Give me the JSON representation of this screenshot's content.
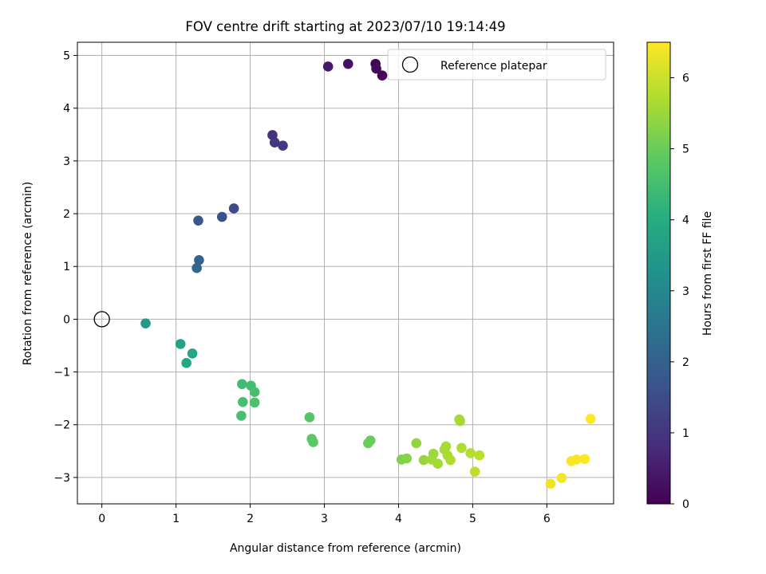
{
  "chart_data": {
    "type": "scatter",
    "title": "FOV centre drift starting at 2023/07/10 19:14:49",
    "xlabel": "Angular distance from reference (arcmin)",
    "ylabel": "Rotation from reference (arcmin)",
    "xlim": [
      -0.33,
      6.9
    ],
    "ylim": [
      -3.5,
      5.25
    ],
    "xticks": [
      0,
      1,
      2,
      3,
      4,
      5,
      6
    ],
    "yticks": [
      -3,
      -2,
      -1,
      0,
      1,
      2,
      3,
      4,
      5
    ],
    "xtick_labels": [
      "0",
      "1",
      "2",
      "3",
      "4",
      "5",
      "6"
    ],
    "ytick_labels": [
      "−3",
      "−2",
      "−1",
      "0",
      "1",
      "2",
      "3",
      "4",
      "5"
    ],
    "grid": true,
    "legend": {
      "position": "top-right",
      "entries": [
        "Reference platepar"
      ]
    },
    "reference": {
      "name": "Reference platepar",
      "x": 0,
      "y": 0,
      "marker": "open-circle"
    },
    "colorbar": {
      "label": "Hours from first FF file",
      "colormap": "viridis",
      "range": [
        0,
        6.5
      ],
      "ticks": [
        0,
        1,
        2,
        3,
        4,
        5,
        6
      ],
      "tick_labels": [
        "0",
        "1",
        "2",
        "3",
        "4",
        "5",
        "6"
      ]
    },
    "points": [
      {
        "x": 3.69,
        "y": 4.84,
        "c": 0.0
      },
      {
        "x": 3.78,
        "y": 4.62,
        "c": 0.08
      },
      {
        "x": 3.7,
        "y": 4.75,
        "c": 0.15
      },
      {
        "x": 3.32,
        "y": 4.84,
        "c": 0.3
      },
      {
        "x": 3.05,
        "y": 4.79,
        "c": 0.45
      },
      {
        "x": 2.3,
        "y": 3.49,
        "c": 0.9
      },
      {
        "x": 2.33,
        "y": 3.35,
        "c": 1.0
      },
      {
        "x": 2.44,
        "y": 3.29,
        "c": 1.1
      },
      {
        "x": 1.78,
        "y": 2.1,
        "c": 1.5
      },
      {
        "x": 1.62,
        "y": 1.94,
        "c": 1.6
      },
      {
        "x": 1.3,
        "y": 1.87,
        "c": 1.75
      },
      {
        "x": 1.31,
        "y": 1.12,
        "c": 2.05
      },
      {
        "x": 1.28,
        "y": 0.97,
        "c": 2.15
      },
      {
        "x": 0.59,
        "y": -0.08,
        "c": 3.5
      },
      {
        "x": 1.06,
        "y": -0.47,
        "c": 3.7
      },
      {
        "x": 1.22,
        "y": -0.65,
        "c": 3.8
      },
      {
        "x": 1.14,
        "y": -0.83,
        "c": 3.85
      },
      {
        "x": 1.89,
        "y": -1.23,
        "c": 4.45
      },
      {
        "x": 2.01,
        "y": -1.26,
        "c": 4.5
      },
      {
        "x": 2.06,
        "y": -1.38,
        "c": 4.55
      },
      {
        "x": 1.9,
        "y": -1.57,
        "c": 4.55
      },
      {
        "x": 2.06,
        "y": -1.58,
        "c": 4.6
      },
      {
        "x": 1.88,
        "y": -1.83,
        "c": 4.55
      },
      {
        "x": 2.8,
        "y": -1.86,
        "c": 4.75
      },
      {
        "x": 2.83,
        "y": -2.27,
        "c": 4.8
      },
      {
        "x": 2.85,
        "y": -2.33,
        "c": 4.85
      },
      {
        "x": 3.62,
        "y": -2.3,
        "c": 4.95
      },
      {
        "x": 3.59,
        "y": -2.35,
        "c": 5.0
      },
      {
        "x": 4.04,
        "y": -2.66,
        "c": 5.2
      },
      {
        "x": 4.11,
        "y": -2.64,
        "c": 5.3
      },
      {
        "x": 4.24,
        "y": -2.35,
        "c": 5.4
      },
      {
        "x": 4.34,
        "y": -2.67,
        "c": 5.45
      },
      {
        "x": 4.47,
        "y": -2.55,
        "c": 5.5
      },
      {
        "x": 4.45,
        "y": -2.66,
        "c": 5.55
      },
      {
        "x": 4.53,
        "y": -2.74,
        "c": 5.6
      },
      {
        "x": 4.62,
        "y": -2.47,
        "c": 5.6
      },
      {
        "x": 4.64,
        "y": -2.41,
        "c": 5.65
      },
      {
        "x": 4.66,
        "y": -2.58,
        "c": 5.65
      },
      {
        "x": 4.7,
        "y": -2.67,
        "c": 5.7
      },
      {
        "x": 4.82,
        "y": -1.9,
        "c": 5.6
      },
      {
        "x": 4.83,
        "y": -1.93,
        "c": 5.6
      },
      {
        "x": 4.85,
        "y": -2.44,
        "c": 5.7
      },
      {
        "x": 4.97,
        "y": -2.54,
        "c": 5.75
      },
      {
        "x": 5.09,
        "y": -2.58,
        "c": 5.8
      },
      {
        "x": 5.03,
        "y": -2.89,
        "c": 5.85
      },
      {
        "x": 6.05,
        "y": -3.12,
        "c": 6.35
      },
      {
        "x": 6.2,
        "y": -3.01,
        "c": 6.4
      },
      {
        "x": 6.33,
        "y": -2.69,
        "c": 6.45
      },
      {
        "x": 6.4,
        "y": -2.66,
        "c": 6.45
      },
      {
        "x": 6.51,
        "y": -2.65,
        "c": 6.5
      },
      {
        "x": 6.59,
        "y": -1.89,
        "c": 6.5
      }
    ]
  }
}
